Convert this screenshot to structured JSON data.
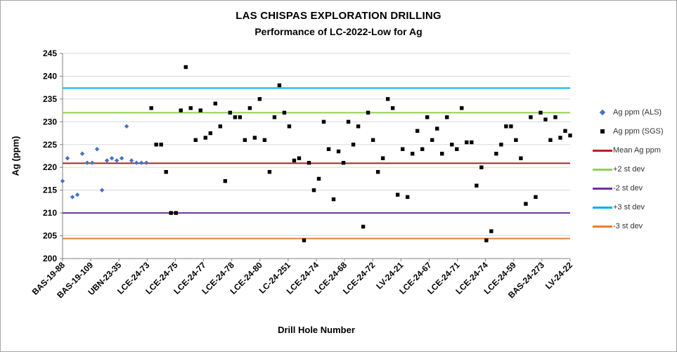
{
  "title": "LAS CHISPAS EXPLORATION DRILLING",
  "subtitle": "Performance of LC-2022-Low for Ag",
  "x_axis_title": "Drill Hole Number",
  "y_axis_title": "Ag (ppm)",
  "legend": {
    "items": [
      {
        "label": "Ag ppm (ALS)",
        "marker": "diamond",
        "color": "#4472C4"
      },
      {
        "label": "Ag ppm (SGS)",
        "marker": "square",
        "color": "#000000"
      },
      {
        "label": "Mean Ag ppm",
        "marker": "line",
        "color": "#B22222"
      },
      {
        "label": "+2 st dev",
        "marker": "line",
        "color": "#92D050"
      },
      {
        "label": "-2 st dev",
        "marker": "line",
        "color": "#7030A0"
      },
      {
        "label": "+3 st dev",
        "marker": "line",
        "color": "#00B0F0"
      },
      {
        "label": "-3 st dev",
        "marker": "line",
        "color": "#ED7D31"
      }
    ]
  },
  "chart_data": {
    "type": "scatter",
    "title": "LAS CHISPAS EXPLORATION DRILLING",
    "subtitle": "Performance of LC-2022-Low for Ag",
    "xlabel": "Drill Hole Number",
    "ylabel": "Ag (ppm)",
    "grid": true,
    "legend_position": "right",
    "y_axis": {
      "min": 200,
      "max": 245,
      "step": 5
    },
    "x_tick_labels": [
      "BAS-19-88",
      "BAS-19-109",
      "UBN-23-35",
      "LCE-24-73",
      "LCE-24-75",
      "LCE-24-77",
      "LCE-24-78",
      "LCE-24-80",
      "LC-24-251",
      "LCE-24-74",
      "LCE-24-68",
      "LCE-24-72",
      "LV-24-21",
      "LCE-24-67",
      "LCE-24-71",
      "LCE-24-74",
      "LCE-24-59",
      "BAS-24-273",
      "LV-24-22"
    ],
    "series": [
      {
        "name": "Ag ppm (ALS)",
        "marker": "diamond",
        "color": "#4472C4",
        "values": [
          217,
          222,
          213.5,
          214,
          223,
          221,
          221,
          224,
          215,
          221.5,
          222,
          221.5,
          222,
          229,
          221.5,
          221,
          221,
          221
        ]
      },
      {
        "name": "Ag ppm (SGS)",
        "marker": "square",
        "color": "#000000",
        "values": [
          233,
          225,
          225,
          219,
          210,
          210,
          232.5,
          242,
          233,
          226,
          232.5,
          226.5,
          227.5,
          234,
          229,
          217,
          232,
          231,
          231,
          226,
          233,
          226.5,
          235,
          226,
          219,
          231,
          238,
          232,
          229,
          221.5,
          222,
          204,
          221,
          215,
          217.5,
          230,
          224,
          213,
          223.5,
          221,
          230,
          225,
          229,
          207,
          232,
          226,
          219,
          222,
          235,
          233,
          214,
          224,
          213.5,
          223,
          228,
          224,
          231,
          226,
          228.5,
          223,
          231,
          225,
          224,
          233,
          225.5,
          225.5,
          216,
          220,
          204,
          206,
          223,
          225,
          229,
          229,
          226,
          222,
          212,
          231,
          213.5,
          232,
          230.5,
          226,
          231,
          226.5,
          228,
          227
        ]
      }
    ],
    "reference_lines": [
      {
        "name": "Mean Ag ppm",
        "value": 220.9,
        "color": "#B22222"
      },
      {
        "name": "+2 st dev",
        "value": 232.0,
        "color": "#92D050"
      },
      {
        "name": "-2 st dev",
        "value": 210.0,
        "color": "#7030A0"
      },
      {
        "name": "+3 st dev",
        "value": 237.4,
        "color": "#00B0F0"
      },
      {
        "name": "-3 st dev",
        "value": 204.4,
        "color": "#ED7D31"
      }
    ]
  }
}
